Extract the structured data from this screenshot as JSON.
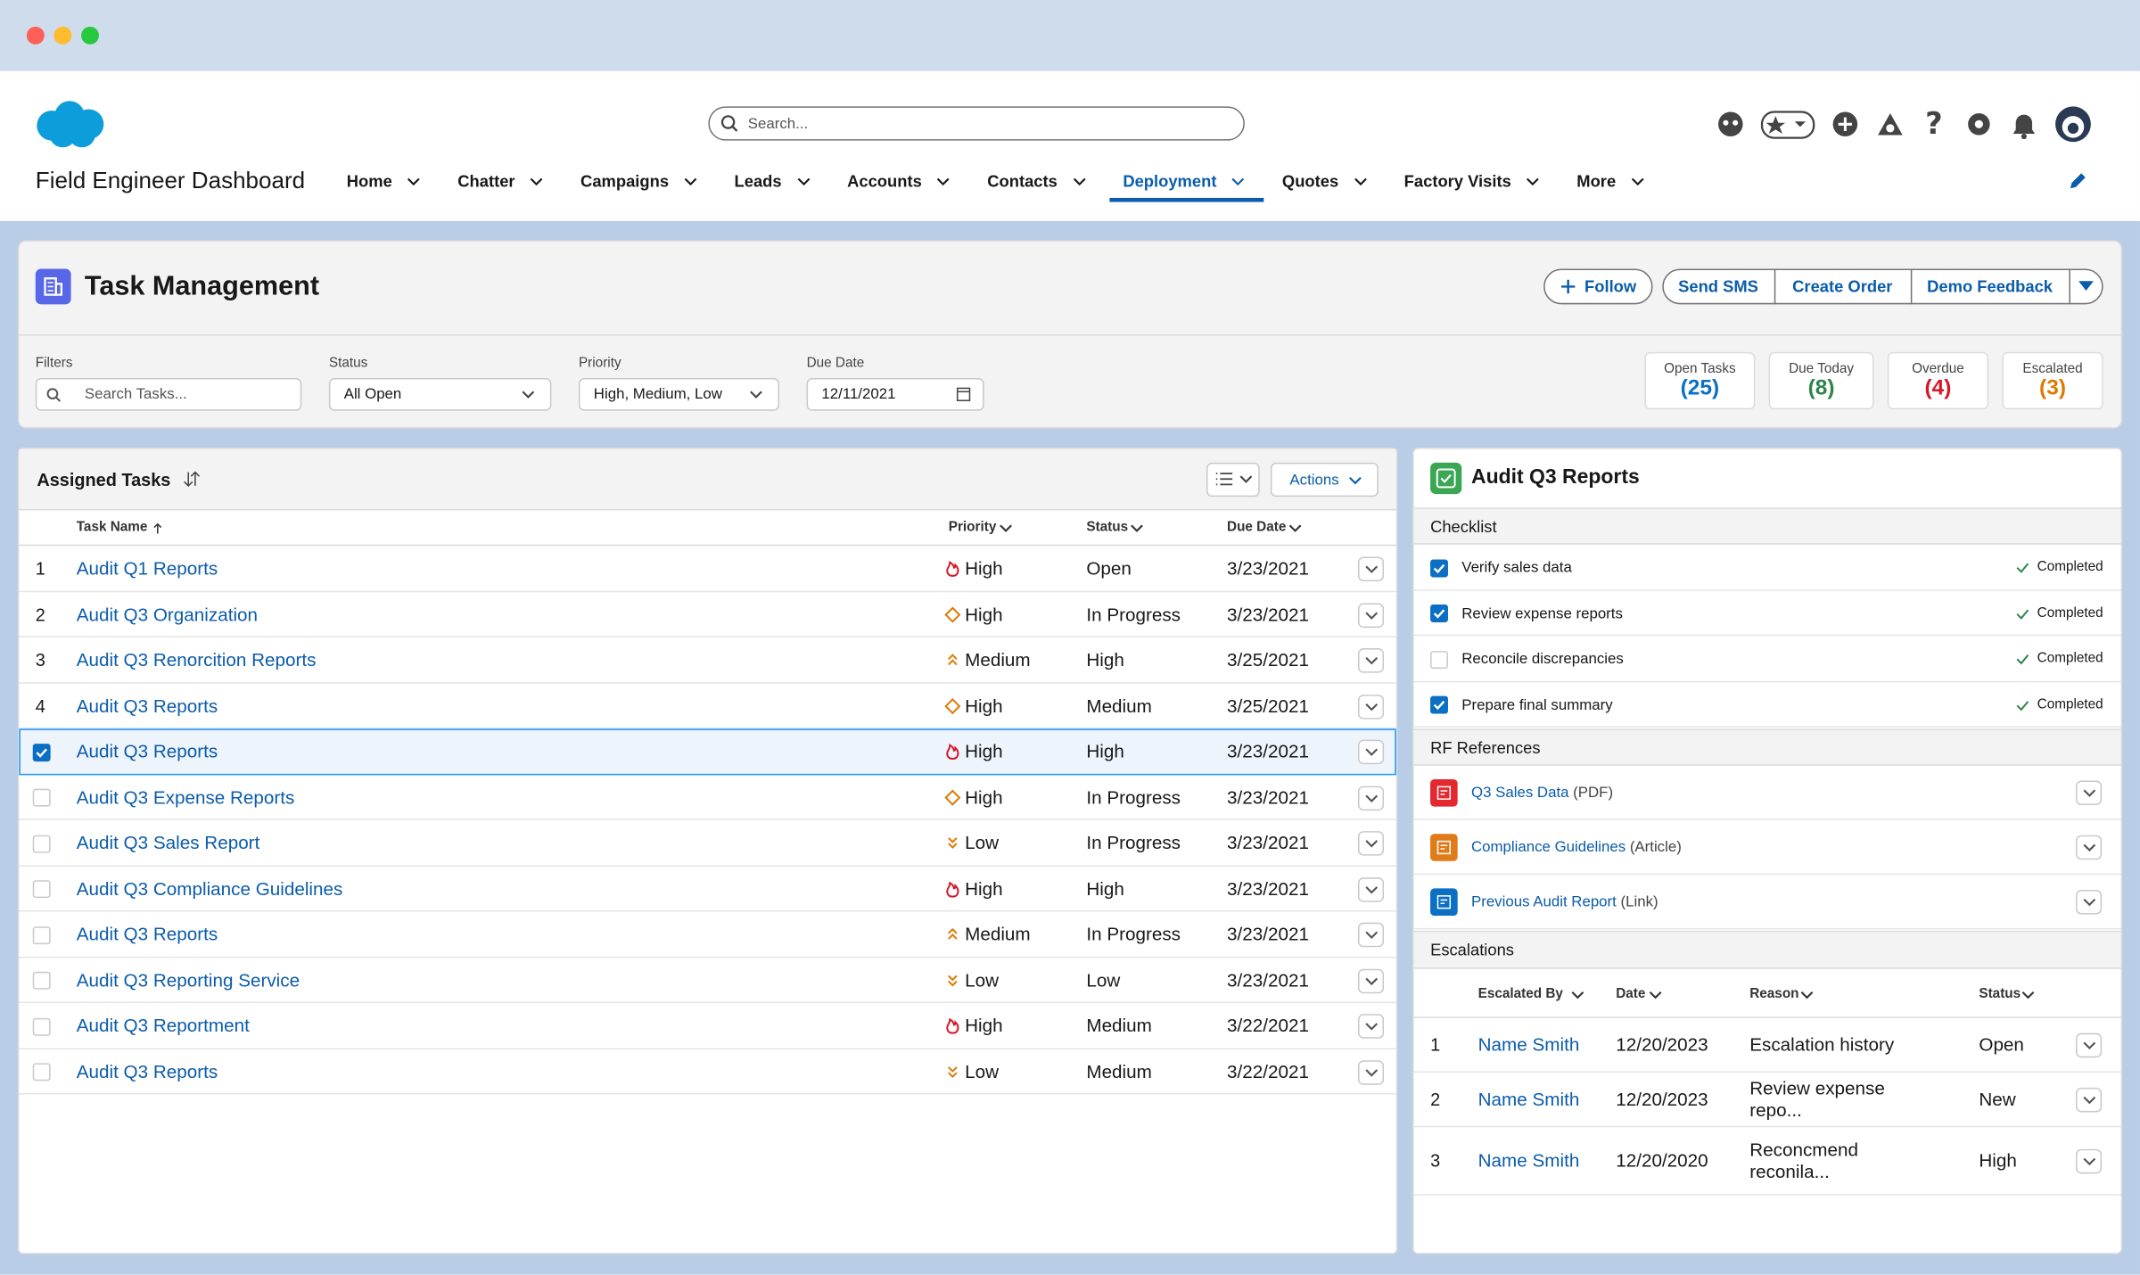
{
  "header": {
    "search_placeholder": "Search...",
    "app_name": "Field Engineer Dashboard",
    "nav": [
      {
        "label": "Home"
      },
      {
        "label": "Chatter"
      },
      {
        "label": "Campaigns"
      },
      {
        "label": "Leads"
      },
      {
        "label": "Accounts"
      },
      {
        "label": "Contacts"
      },
      {
        "label": "Deployment",
        "selected": true
      },
      {
        "label": "Quotes"
      },
      {
        "label": "Factory Visits"
      },
      {
        "label": "More"
      }
    ]
  },
  "page": {
    "title": "Task Management",
    "buttons": [
      "Follow",
      "Send SMS",
      "Create Order",
      "Demo Feedback"
    ]
  },
  "filters": {
    "label": "Filters",
    "search_placeholder": "Search Tasks...",
    "fields": [
      {
        "label": "Status",
        "value": "All Open"
      },
      {
        "label": "Priority",
        "value": "High, Medium, Low"
      },
      {
        "label": "Due Date",
        "value": "12/11/2021"
      }
    ]
  },
  "stats": [
    {
      "label": "Open Tasks",
      "count": "(25)",
      "color": "#0b6fc4"
    },
    {
      "label": "Due Today",
      "count": "(8)",
      "color": "#2e844a"
    },
    {
      "label": "Overdue",
      "count": "(4)",
      "color": "#d4182a"
    },
    {
      "label": "Escalated",
      "count": "(3)",
      "color": "#dd7a01"
    }
  ],
  "tasks": {
    "title": "Assigned Tasks",
    "actions": "Actions",
    "columns": [
      "Task Name",
      "Priority",
      "Status",
      "Due Date"
    ],
    "rows": [
      {
        "index": "1",
        "name": "Audit Q1 Reports",
        "icon": "flame",
        "priority": "High",
        "status": "Open",
        "due": "3/23/2021"
      },
      {
        "index": "2",
        "name": "Audit Q3 Organization",
        "icon": "diamond",
        "priority": "High",
        "status": "In Progress",
        "due": "3/23/2021"
      },
      {
        "index": "3",
        "name": "Audit Q3 Renorcition Reports",
        "icon": "up",
        "priority": "Medium",
        "status": "High",
        "due": "3/25/2021"
      },
      {
        "index": "4",
        "name": "Audit Q3 Reports",
        "icon": "diamond",
        "priority": "High",
        "status": "Medium",
        "due": "3/25/2021"
      },
      {
        "checked": true,
        "selected": true,
        "name": "Audit Q3 Reports",
        "icon": "flame",
        "priority": "High",
        "status": "High",
        "due": "3/23/2021"
      },
      {
        "checked": false,
        "name": "Audit Q3 Expense Reports",
        "icon": "diamond",
        "priority": "High",
        "status": "In Progress",
        "due": "3/23/2021"
      },
      {
        "checked": false,
        "name": "Audit Q3 Sales Report",
        "icon": "down",
        "priority": "Low",
        "status": "In Progress",
        "due": "3/23/2021"
      },
      {
        "checked": false,
        "name": "Audit Q3 Compliance Guidelines",
        "icon": "flame",
        "priority": "High",
        "status": "High",
        "due": "3/23/2021"
      },
      {
        "checked": false,
        "name": "Audit Q3 Reports",
        "icon": "up",
        "priority": "Medium",
        "status": "In Progress",
        "due": "3/23/2021"
      },
      {
        "checked": false,
        "name": "Audit Q3 Reporting Service",
        "icon": "down",
        "priority": "Low",
        "status": "Low",
        "due": "3/23/2021"
      },
      {
        "checked": false,
        "name": "Audit Q3 Reportment",
        "icon": "flame",
        "priority": "High",
        "status": "Medium",
        "due": "3/22/2021"
      },
      {
        "checked": false,
        "name": "Audit Q3 Reports",
        "icon": "down",
        "priority": "Low",
        "status": "Medium",
        "due": "3/22/2021"
      }
    ]
  },
  "detail": {
    "title": "Audit Q3 Reports",
    "checklist": {
      "title": "Checklist",
      "items": [
        {
          "label": "Verify sales data",
          "checked": true,
          "status": "Completed"
        },
        {
          "label": "Review expense reports",
          "checked": true,
          "status": "Completed"
        },
        {
          "label": "Reconcile discrepancies",
          "checked": false,
          "status": "Completed"
        },
        {
          "label": "Prepare final summary",
          "checked": true,
          "status": "Completed"
        }
      ]
    },
    "references": {
      "title": "RF References",
      "items": [
        {
          "link": "Q3 Sales Data",
          "kind": "(PDF)",
          "color": "#e3282f"
        },
        {
          "link": "Compliance Guidelines",
          "kind": "(Article)",
          "color": "#e07b1a"
        },
        {
          "link": "Previous Audit Report",
          "kind": "(Link)",
          "color": "#0b6fc4"
        }
      ]
    },
    "escalations": {
      "title": "Escalations",
      "columns": [
        "Escalated By",
        "Date",
        "Reason",
        "Status"
      ],
      "rows": [
        {
          "index": "1",
          "by": "Name Smith",
          "date": "12/20/2023",
          "reason": "Escalation history",
          "status": "Open"
        },
        {
          "index": "2",
          "by": "Name Smith",
          "date": "12/20/2023",
          "reason": "Review expense repo...",
          "status": "New"
        },
        {
          "index": "3",
          "by": "Name Smith",
          "date": "12/20/2020",
          "reason": "Reconcmend reconila...",
          "status": "High"
        }
      ]
    }
  }
}
